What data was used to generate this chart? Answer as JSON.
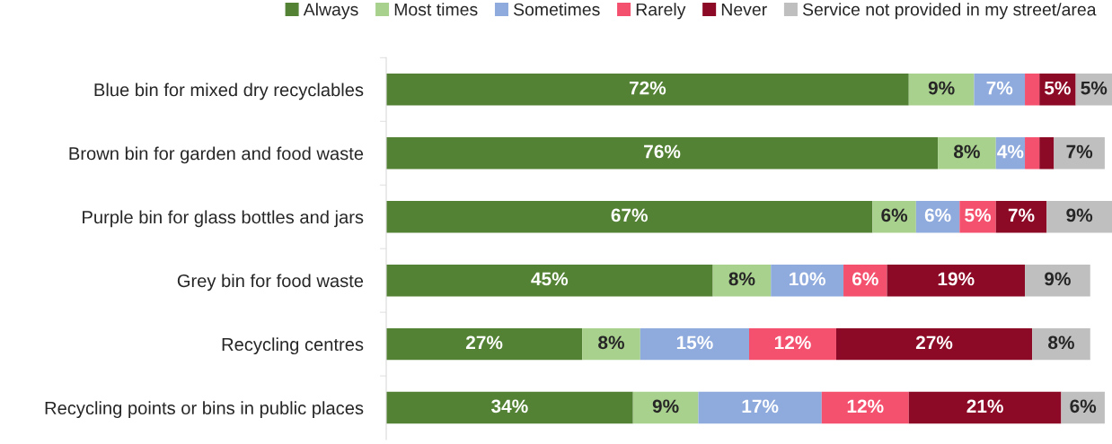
{
  "chart_data": {
    "type": "bar",
    "orientation": "horizontal",
    "stacked": true,
    "legend": "top",
    "categories": [
      "Blue bin for mixed dry recyclables",
      "Brown bin for garden and food waste",
      "Purple bin for glass bottles and jars",
      "Grey bin for food waste",
      "Recycling centres",
      "Recycling points or bins in public places"
    ],
    "series": [
      {
        "name": "Always",
        "color": "#548235",
        "values": [
          72,
          76,
          67,
          45,
          27,
          34
        ],
        "value_labels": [
          "72%",
          "76%",
          "67%",
          "45%",
          "27%",
          "34%"
        ]
      },
      {
        "name": "Most times",
        "color": "#a9d18e",
        "values": [
          9,
          8,
          6,
          8,
          8,
          9
        ],
        "value_labels": [
          "9%",
          "8%",
          "6%",
          "8%",
          "8%",
          "9%"
        ]
      },
      {
        "name": "Sometimes",
        "color": "#8faadc",
        "values": [
          7,
          4,
          6,
          10,
          15,
          17
        ],
        "value_labels": [
          "7%",
          "4%",
          "6%",
          "10%",
          "15%",
          "17%"
        ]
      },
      {
        "name": "Rarely",
        "color": "#f4516f",
        "values": [
          2,
          2,
          5,
          6,
          12,
          12
        ],
        "value_labels": [
          null,
          null,
          "5%",
          "6%",
          "12%",
          "12%"
        ]
      },
      {
        "name": "Never",
        "color": "#8c0a26",
        "values": [
          5,
          2,
          7,
          19,
          27,
          21
        ],
        "value_labels": [
          "5%",
          null,
          "7%",
          "19%",
          "27%",
          "21%"
        ]
      },
      {
        "name": "Service not provided in my street/area",
        "color": "#bfbfbf",
        "values": [
          5,
          7,
          9,
          9,
          8,
          6
        ],
        "value_labels": [
          "5%",
          "7%",
          "9%",
          "9%",
          "8%",
          "6%"
        ]
      }
    ]
  }
}
